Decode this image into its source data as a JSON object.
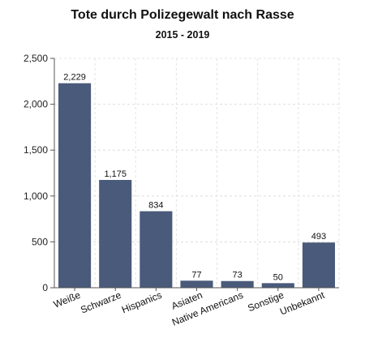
{
  "chart_data": {
    "type": "bar",
    "title": "Tote durch Polizegewalt nach Rasse",
    "subtitle": "2015 - 2019",
    "xlabel": "",
    "ylabel": "",
    "categories": [
      "Weiße",
      "Schwarze",
      "Hispanics",
      "Asiaten",
      "Native Americans",
      "Sonstige",
      "Unbekannt"
    ],
    "values": [
      2229,
      1175,
      834,
      77,
      73,
      50,
      493
    ],
    "data_labels": [
      "2,229",
      "1,175",
      "834",
      "77",
      "73",
      "50",
      "493"
    ],
    "ylim": [
      0,
      2500
    ],
    "yticks": [
      0,
      500,
      1000,
      1500,
      2000,
      2500
    ],
    "ytick_labels": [
      "0",
      "500",
      "1,000",
      "1,500",
      "2,000",
      "2,500"
    ],
    "grid": true,
    "bar_color": "#4a5a7a"
  }
}
